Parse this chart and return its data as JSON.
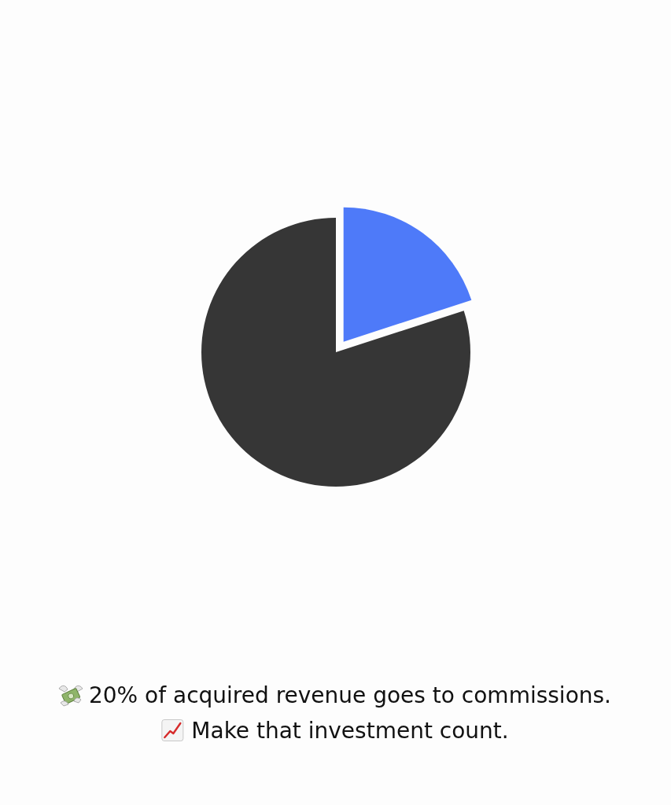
{
  "chart_data": {
    "type": "pie",
    "categories": [
      null,
      null
    ],
    "values": [
      20,
      80
    ],
    "colors": [
      "#4e7af9",
      "#363636"
    ],
    "annotations": [
      "20% of acquired revenue goes to commissions.",
      "Make that investment count."
    ]
  }
}
